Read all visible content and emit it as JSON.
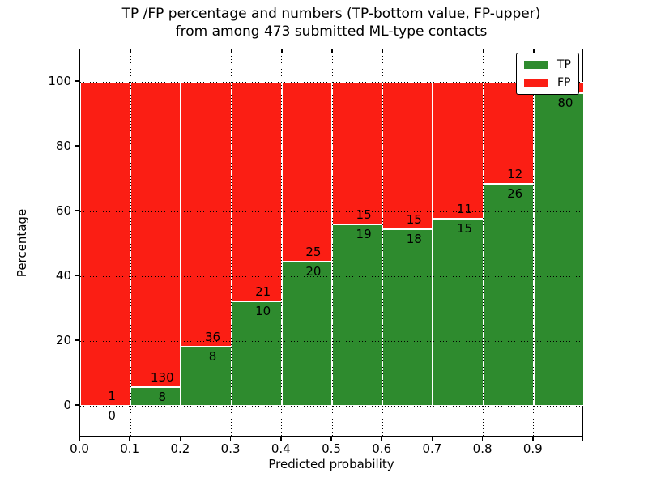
{
  "title": {
    "line1": "TP /FP percentage and numbers (TP-bottom value, FP-upper)",
    "line2": "from among 473 submitted ML-type contacts"
  },
  "axes": {
    "xlabel": "Predicted probability",
    "ylabel": "Percentage",
    "x_ticks": [
      "0.0",
      "0.1",
      "0.2",
      "0.3",
      "0.4",
      "0.5",
      "0.6",
      "0.7",
      "0.8",
      "0.9"
    ],
    "y_ticks": [
      "0",
      "20",
      "40",
      "60",
      "80",
      "100"
    ]
  },
  "legend": {
    "items": [
      {
        "label": "TP",
        "color": "#2e8b2e"
      },
      {
        "label": "FP",
        "color": "#fb1e14"
      }
    ]
  },
  "colors": {
    "tp": "#2e8b2e",
    "fp": "#fb1e14",
    "bar_edge": "#ffffff",
    "grid": "#000000",
    "background": "#ffffff"
  },
  "chart_data": {
    "type": "bar",
    "variant": "stacked-percentage",
    "title": "TP /FP percentage and numbers (TP-bottom value, FP-upper) from among 473 submitted ML-type contacts",
    "xlabel": "Predicted probability",
    "ylabel": "Percentage",
    "xlim": [
      0.0,
      1.0
    ],
    "ylim": [
      -10,
      110
    ],
    "grid": true,
    "legend_position": "upper right",
    "total_submitted": 473,
    "categories": [
      "0.0-0.1",
      "0.1-0.2",
      "0.2-0.3",
      "0.3-0.4",
      "0.4-0.5",
      "0.5-0.6",
      "0.6-0.7",
      "0.7-0.8",
      "0.8-0.9",
      "0.9-1.0"
    ],
    "series": [
      {
        "name": "TP",
        "counts": [
          0,
          8,
          8,
          10,
          20,
          19,
          18,
          15,
          26,
          80
        ]
      },
      {
        "name": "FP",
        "counts": [
          1,
          130,
          36,
          21,
          25,
          15,
          15,
          11,
          12,
          null
        ]
      }
    ],
    "tp_percent": [
      0,
      5.8,
      18.2,
      32.3,
      44.4,
      55.9,
      54.5,
      57.7,
      68.4,
      96.4
    ],
    "bar_labels": {
      "tp": [
        "0",
        "8",
        "8",
        "10",
        "20",
        "19",
        "18",
        "15",
        "26",
        "80"
      ],
      "fp": [
        "1",
        "130",
        "36",
        "21",
        "25",
        "15",
        "15",
        "11",
        "12",
        ""
      ]
    }
  }
}
